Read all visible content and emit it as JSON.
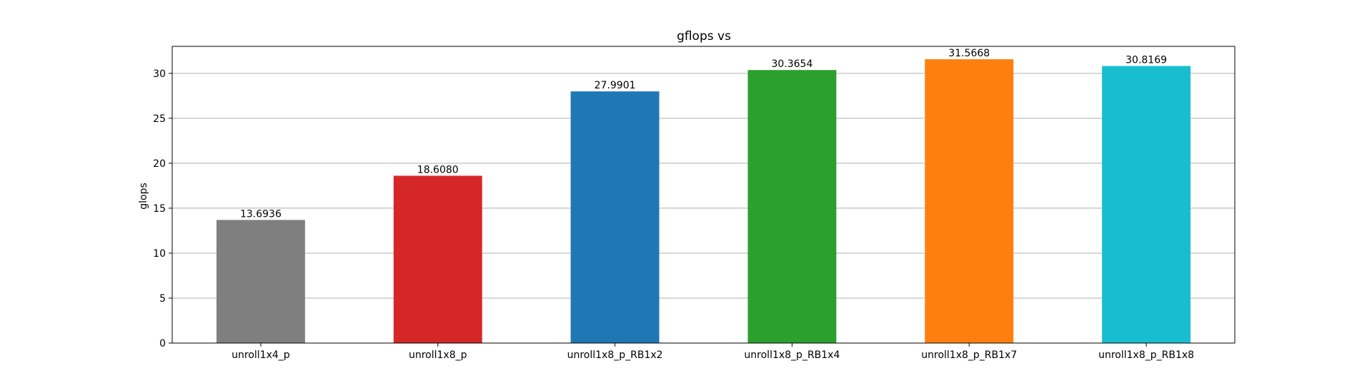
{
  "chart_data": {
    "type": "bar",
    "title": "gflops vs",
    "xlabel": "",
    "ylabel": "glops",
    "ylim": [
      0,
      33
    ],
    "yticks": [
      0,
      5,
      10,
      15,
      20,
      25,
      30
    ],
    "grid": "y",
    "categories": [
      "unroll1x4_p",
      "unroll1x8_p",
      "unroll1x8_p_RB1x2",
      "unroll1x8_p_RB1x4",
      "unroll1x8_p_RB1x7",
      "unroll1x8_p_RB1x8"
    ],
    "values": [
      13.6936,
      18.608,
      27.9901,
      30.3654,
      31.5668,
      30.8169
    ],
    "value_labels": [
      "13.6936",
      "18.6080",
      "27.9901",
      "30.3654",
      "31.5668",
      "30.8169"
    ],
    "colors": [
      "#7f7f7f",
      "#d62728",
      "#1f77b4",
      "#2ca02c",
      "#ff7f0e",
      "#17becf"
    ]
  }
}
